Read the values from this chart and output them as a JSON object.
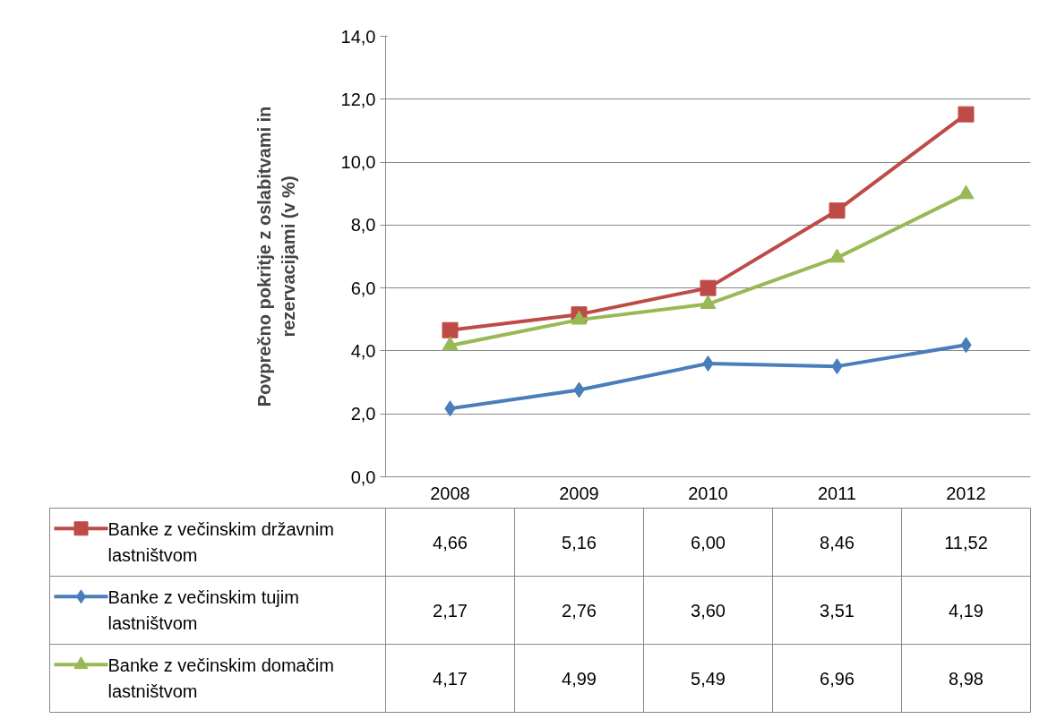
{
  "chart_data": {
    "type": "line",
    "ylabel": "Povprečno pokritje z oslabitvami in rezervacijami (v %)",
    "categories": [
      "2008",
      "2009",
      "2010",
      "2011",
      "2012"
    ],
    "ylim": [
      0,
      14
    ],
    "yticks": [
      {
        "value": 0,
        "label": "0,0"
      },
      {
        "value": 2,
        "label": "2,0"
      },
      {
        "value": 4,
        "label": "4,0"
      },
      {
        "value": 6,
        "label": "6,0"
      },
      {
        "value": 8,
        "label": "8,0"
      },
      {
        "value": 10,
        "label": "10,0"
      },
      {
        "value": 12,
        "label": "12,0"
      },
      {
        "value": 14,
        "label": "14,0"
      }
    ],
    "grid": "y",
    "legend": "bottom",
    "line_style": "solid",
    "series": [
      {
        "name": "Banke z večinskim državnim lastništvom",
        "color": "#be4b48",
        "marker": "square",
        "values": [
          4.66,
          5.16,
          6.0,
          8.46,
          11.52
        ],
        "value_labels": [
          "4,66",
          "5,16",
          "6,00",
          "8,46",
          "11,52"
        ]
      },
      {
        "name": "Banke z večinskim tujim lastništvom",
        "color": "#4a7ebb",
        "marker": "diamond",
        "values": [
          2.17,
          2.76,
          3.6,
          3.51,
          4.19
        ],
        "value_labels": [
          "2,17",
          "2,76",
          "3,60",
          "3,51",
          "4,19"
        ]
      },
      {
        "name": "Banke z večinskim domačim lastništvom",
        "color": "#98b954",
        "marker": "triangle",
        "values": [
          4.17,
          4.99,
          5.49,
          6.96,
          8.98
        ],
        "value_labels": [
          "4,17",
          "4,99",
          "5,49",
          "6,96",
          "8,98"
        ]
      }
    ]
  }
}
